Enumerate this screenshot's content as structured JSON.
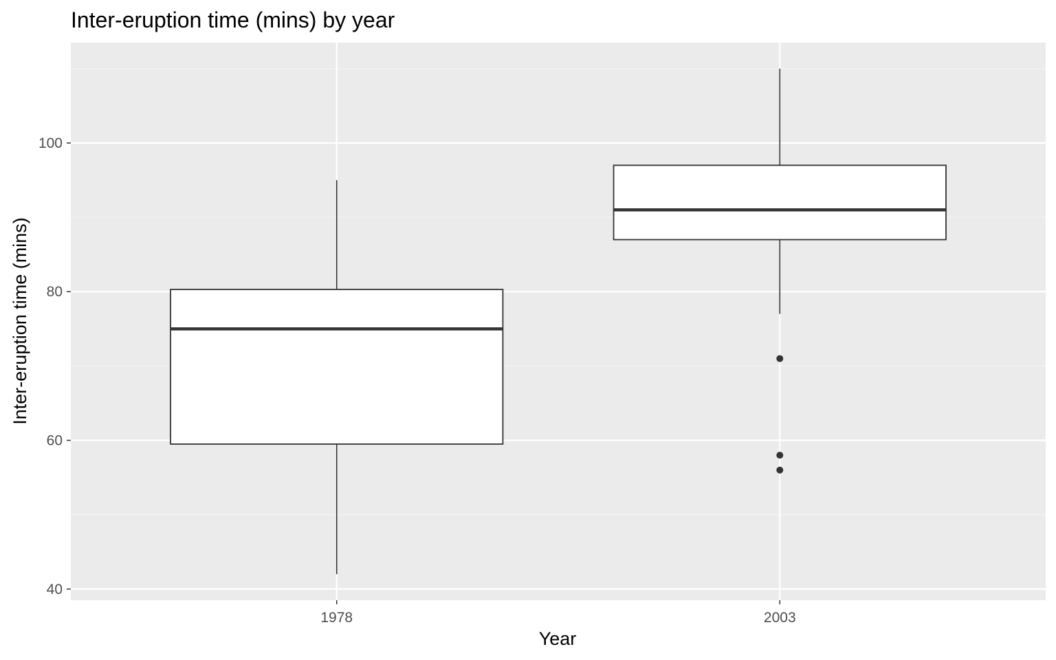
{
  "chart_data": {
    "type": "box",
    "title": "Inter-eruption time (mins) by year",
    "xlabel": "Year",
    "ylabel": "Inter-eruption time (mins)",
    "categories": [
      "1978",
      "2003"
    ],
    "boxes": [
      {
        "category": "1978",
        "whisker_low": 42,
        "q1": 59.5,
        "median": 75,
        "q3": 80.3,
        "whisker_high": 95,
        "outliers": []
      },
      {
        "category": "2003",
        "whisker_low": 77,
        "q1": 87,
        "median": 91,
        "q3": 97,
        "whisker_high": 110,
        "outliers": [
          71,
          58,
          56
        ]
      }
    ],
    "y_ticks": [
      40,
      60,
      80,
      100
    ],
    "y_tick_labels": [
      "40",
      "60",
      "80",
      "100"
    ],
    "ylim": [
      38.5,
      113.5
    ],
    "grid": true,
    "legend": "none",
    "colors": {
      "panel_background": "#ebebeb",
      "grid_major": "#ffffff",
      "grid_minor": "#f5f5f5",
      "box_fill": "#ffffff",
      "box_stroke": "#333333",
      "outlier": "#333333"
    }
  }
}
